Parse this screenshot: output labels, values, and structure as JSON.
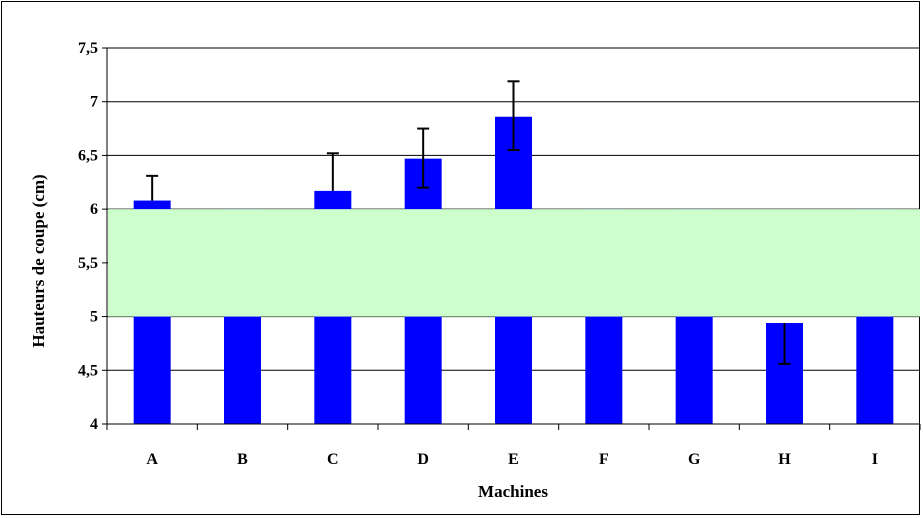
{
  "chart_data": {
    "type": "bar",
    "title": "",
    "xlabel": "Machines",
    "ylabel": "Hauteurs de coupe (cm)",
    "categories": [
      "A",
      "B",
      "C",
      "D",
      "E",
      "F",
      "G",
      "H",
      "I"
    ],
    "values": [
      6.08,
      null,
      6.17,
      6.47,
      6.86,
      null,
      null,
      4.94,
      null
    ],
    "error_upper": [
      6.31,
      null,
      6.52,
      6.75,
      7.19,
      null,
      null,
      null,
      null
    ],
    "error_lower": [
      null,
      null,
      null,
      6.2,
      6.55,
      null,
      null,
      4.56,
      null
    ],
    "ylim": [
      4,
      7.5
    ],
    "yticks": [
      4,
      4.5,
      5,
      5.5,
      6,
      6.5,
      7,
      7.5
    ],
    "ytick_labels": [
      "4",
      "4,5",
      "5",
      "5,5",
      "6",
      "6,5",
      "7",
      "7,5"
    ],
    "reference_band": {
      "from": 5,
      "to": 6,
      "color": "#ccffcc"
    },
    "bar_color": "#0000ff",
    "grid": true,
    "legend": "none"
  }
}
